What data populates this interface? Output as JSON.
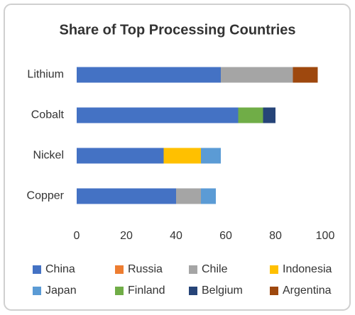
{
  "chart_data": {
    "type": "stacked-bar-horizontal",
    "title": "Share of Top Processing Countries",
    "categories": [
      "Lithium",
      "Cobalt",
      "Nickel",
      "Copper"
    ],
    "series": [
      {
        "name": "China",
        "color": "#4472c4",
        "values": [
          58,
          65,
          35,
          40
        ]
      },
      {
        "name": "Russia",
        "color": "#ed7d31",
        "values": [
          0,
          0,
          0,
          0
        ]
      },
      {
        "name": "Chile",
        "color": "#a5a5a5",
        "values": [
          29,
          0,
          0,
          10
        ]
      },
      {
        "name": "Indonesia",
        "color": "#ffc000",
        "values": [
          0,
          0,
          15,
          0
        ]
      },
      {
        "name": "Japan",
        "color": "#5b9bd5",
        "values": [
          0,
          0,
          8,
          6
        ]
      },
      {
        "name": "Finland",
        "color": "#70ad47",
        "values": [
          0,
          10,
          0,
          0
        ]
      },
      {
        "name": "Belgium",
        "color": "#264478",
        "values": [
          0,
          5,
          0,
          0
        ]
      },
      {
        "name": "Argentina",
        "color": "#9e480e",
        "values": [
          10,
          0,
          0,
          0
        ]
      }
    ],
    "xlim": [
      0,
      100
    ],
    "xticks": [
      0,
      20,
      40,
      60,
      80,
      100
    ],
    "grid": false
  }
}
